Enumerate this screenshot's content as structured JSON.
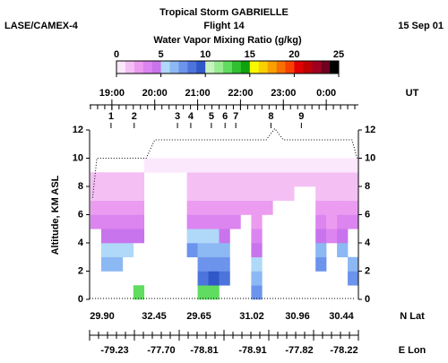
{
  "header": {
    "left": "LASE/CAMEX-4",
    "right": "15 Sep 01"
  },
  "chart_data": {
    "type": "heatmap",
    "title": "Tropical Storm GABRIELLE",
    "subtitle": "Flight 14",
    "colorbar": {
      "title": "Water Vapor Mixing Ratio (g/kg)",
      "lim": [
        0,
        25
      ],
      "ticks": [
        0,
        5,
        10,
        15,
        20,
        25
      ],
      "colors": [
        "#fce8fc",
        "#f4c0f4",
        "#ec9cf0",
        "#dc84f0",
        "#c874ec",
        "#b0d8f8",
        "#8cb8f4",
        "#6c94ec",
        "#4c74dc",
        "#3058c8",
        "#c8f4c0",
        "#98ec90",
        "#60dc60",
        "#30c030",
        "#10a010",
        "#f8f800",
        "#f8d000",
        "#f8a000",
        "#f87000",
        "#f84000",
        "#e00000",
        "#c00000",
        "#a00020",
        "#700020",
        "#000000"
      ]
    },
    "ylabel": "Altitude, KM ASL",
    "ylim": [
      0,
      12
    ],
    "yticks": [
      0,
      2,
      4,
      6,
      8,
      10,
      12
    ],
    "xlabel": "UT",
    "xlim": [
      18.48,
      24.75
    ],
    "xticks": [
      {
        "value": 19,
        "label": "19:00"
      },
      {
        "value": 20,
        "label": "20:00"
      },
      {
        "value": 21,
        "label": "21:00"
      },
      {
        "value": 22,
        "label": "22:00"
      },
      {
        "value": 23,
        "label": "23:00"
      },
      {
        "value": 24,
        "label": "0:00"
      }
    ],
    "markers": {
      "labels": [
        1,
        2,
        3,
        4,
        5,
        6,
        7,
        8,
        9
      ],
      "x": [
        18.98,
        19.52,
        20.53,
        20.84,
        21.32,
        21.64,
        21.89,
        22.71,
        23.42
      ]
    },
    "x_bins": [
      18.5,
      18.75,
      19,
      19.25,
      19.5,
      19.75,
      20,
      20.25,
      20.5,
      20.75,
      21,
      21.25,
      21.5,
      21.75,
      22,
      22.25,
      22.5,
      22.75,
      23,
      23.25,
      23.5,
      23.75,
      24,
      24.25,
      24.5,
      24.75
    ],
    "y_bins": [
      0,
      1,
      2,
      3,
      4,
      5,
      6,
      7,
      8,
      9,
      10
    ],
    "values": [
      [
        null,
        null,
        null,
        null,
        12,
        null,
        null,
        null,
        null,
        null,
        12,
        12,
        null,
        null,
        null,
        7,
        null,
        null,
        null,
        null,
        null,
        null,
        null,
        null,
        null
      ],
      [
        null,
        null,
        null,
        null,
        null,
        null,
        null,
        null,
        null,
        null,
        8,
        9,
        8,
        null,
        null,
        6,
        null,
        null,
        null,
        null,
        null,
        null,
        null,
        null,
        7
      ],
      [
        null,
        6,
        6,
        null,
        null,
        null,
        null,
        null,
        null,
        null,
        7,
        7,
        7,
        null,
        null,
        5,
        null,
        null,
        null,
        null,
        null,
        7,
        null,
        null,
        6
      ],
      [
        null,
        5,
        5,
        5,
        null,
        null,
        null,
        null,
        null,
        7,
        6,
        6,
        6,
        null,
        null,
        4,
        null,
        null,
        null,
        null,
        null,
        6,
        null,
        6,
        null
      ],
      [
        null,
        4,
        4,
        4,
        4,
        null,
        null,
        null,
        null,
        5,
        5,
        5,
        4,
        null,
        null,
        3,
        null,
        null,
        null,
        null,
        null,
        4,
        3,
        4,
        null
      ],
      [
        3,
        3,
        3,
        3,
        3,
        null,
        null,
        null,
        null,
        3,
        3.5,
        3.5,
        3,
        3,
        null,
        2.5,
        null,
        null,
        null,
        null,
        null,
        3,
        2.5,
        3,
        3
      ],
      [
        2,
        2,
        2,
        2,
        2,
        null,
        null,
        null,
        null,
        2,
        2,
        2,
        2,
        2,
        2,
        2,
        2,
        null,
        null,
        null,
        null,
        2,
        2,
        2,
        2
      ],
      [
        1.5,
        1.5,
        1.5,
        1.5,
        1.5,
        null,
        null,
        null,
        null,
        1.5,
        1.5,
        1.5,
        1.5,
        1.5,
        1.5,
        1.5,
        1.5,
        1.5,
        1.5,
        null,
        null,
        1.5,
        1.5,
        1.5,
        1.5
      ],
      [
        1,
        1,
        1,
        1,
        1,
        null,
        null,
        null,
        null,
        1,
        1,
        1,
        1,
        1,
        1,
        1,
        1,
        1,
        1,
        1,
        1,
        1,
        1,
        1,
        1
      ],
      [
        null,
        null,
        null,
        null,
        null,
        0.8,
        0.8,
        0.8,
        0.8,
        0.8,
        0.8,
        0.8,
        0.8,
        0.8,
        0.8,
        0.8,
        0.8,
        0.8,
        0.8,
        0.8,
        0.8,
        0.8,
        0.8,
        0.8,
        0.8
      ]
    ],
    "flight_altitude": {
      "x": [
        18.55,
        18.65,
        19.8,
        20.0,
        22.6,
        22.8,
        23.0,
        24.6,
        24.72
      ],
      "values": [
        7.2,
        10,
        10,
        11.3,
        11.3,
        12.1,
        11.3,
        11.3,
        10
      ]
    },
    "lat": {
      "label": "N Lat",
      "ticks": [
        {
          "value": 29.9,
          "label": "29.90"
        },
        32.45,
        29.65,
        31.02,
        30.96,
        30.44
      ]
    },
    "lon": {
      "label": "E Lon",
      "ticks": [
        -79.23,
        {
          "value": -77.7,
          "label": "-77.70"
        },
        -78.81,
        -78.91,
        -77.82,
        -78.22
      ]
    }
  }
}
